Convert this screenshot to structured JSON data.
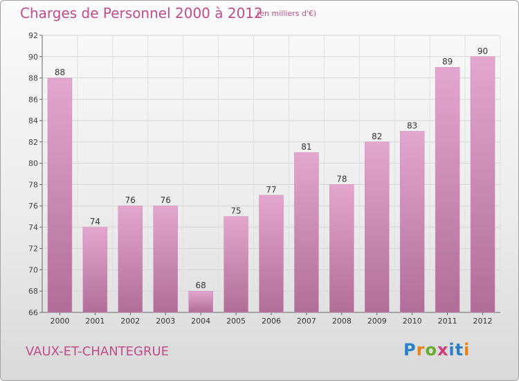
{
  "header": {
    "title": "Charges de Personnel 2000 à 2012",
    "unit": "(en milliers d'€)"
  },
  "footer": {
    "city": "VAUX-ET-CHANTEGRUE",
    "logo": {
      "p": "P",
      "r": "r",
      "o": "o",
      "x": "x",
      "i1": "i",
      "t": "t",
      "i2": "i"
    }
  },
  "colors": {
    "bar_top": "#e3a6cf",
    "bar_bottom": "#b06d98",
    "accent_text": "#c04c8a"
  },
  "chart_data": {
    "type": "bar",
    "title": "Charges de Personnel 2000 à 2012",
    "categories": [
      "2000",
      "2001",
      "2002",
      "2003",
      "2004",
      "2005",
      "2006",
      "2007",
      "2008",
      "2009",
      "2010",
      "2011",
      "2012"
    ],
    "values": [
      88,
      74,
      76,
      76,
      68,
      75,
      77,
      81,
      78,
      82,
      83,
      89,
      90
    ],
    "ylim": [
      66,
      92
    ],
    "yticks": [
      66,
      68,
      70,
      72,
      74,
      76,
      78,
      80,
      82,
      84,
      86,
      88,
      90,
      92
    ],
    "grid": true,
    "legend": "none"
  }
}
